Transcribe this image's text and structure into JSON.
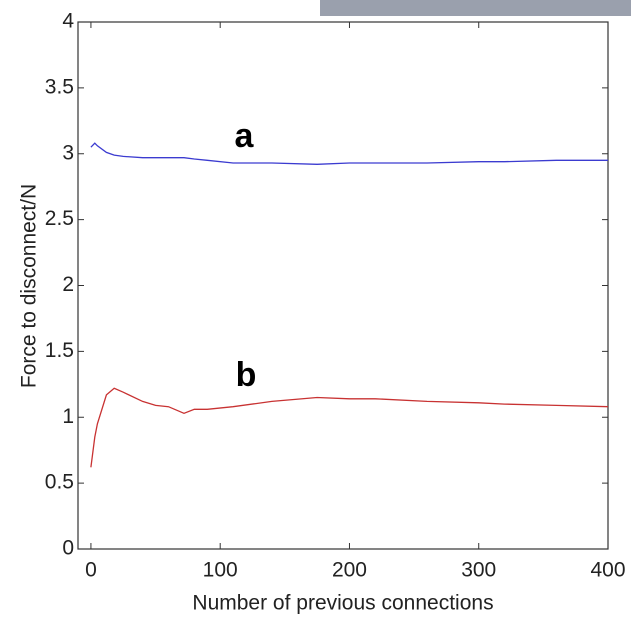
{
  "chart_data": {
    "type": "line",
    "x_label": "Number of previous connections",
    "y_label": "Force to disconnect/N",
    "x": [
      0,
      3,
      5,
      12,
      18,
      25,
      40,
      50,
      60,
      72,
      80,
      90,
      110,
      140,
      175,
      200,
      220,
      260,
      300,
      320,
      360,
      400
    ],
    "series": [
      {
        "name": "a",
        "color": "#3b3bd0",
        "values": [
          3.05,
          3.08,
          3.06,
          3.01,
          2.99,
          2.98,
          2.97,
          2.97,
          2.97,
          2.97,
          2.96,
          2.95,
          2.93,
          2.93,
          2.92,
          2.93,
          2.93,
          2.93,
          2.94,
          2.94,
          2.95,
          2.95
        ]
      },
      {
        "name": "b",
        "color": "#c83232",
        "values": [
          0.62,
          0.85,
          0.95,
          1.17,
          1.22,
          1.19,
          1.12,
          1.09,
          1.08,
          1.03,
          1.06,
          1.06,
          1.08,
          1.12,
          1.15,
          1.14,
          1.14,
          1.12,
          1.11,
          1.1,
          1.09,
          1.08
        ]
      }
    ],
    "xlim": [
      -10,
      400
    ],
    "xticks": [
      0,
      100,
      200,
      300,
      400
    ],
    "ylim": [
      0,
      4
    ],
    "yticks": [
      0,
      0.5,
      1,
      1.5,
      2,
      2.5,
      3,
      3.5,
      4
    ],
    "grid": false
  }
}
